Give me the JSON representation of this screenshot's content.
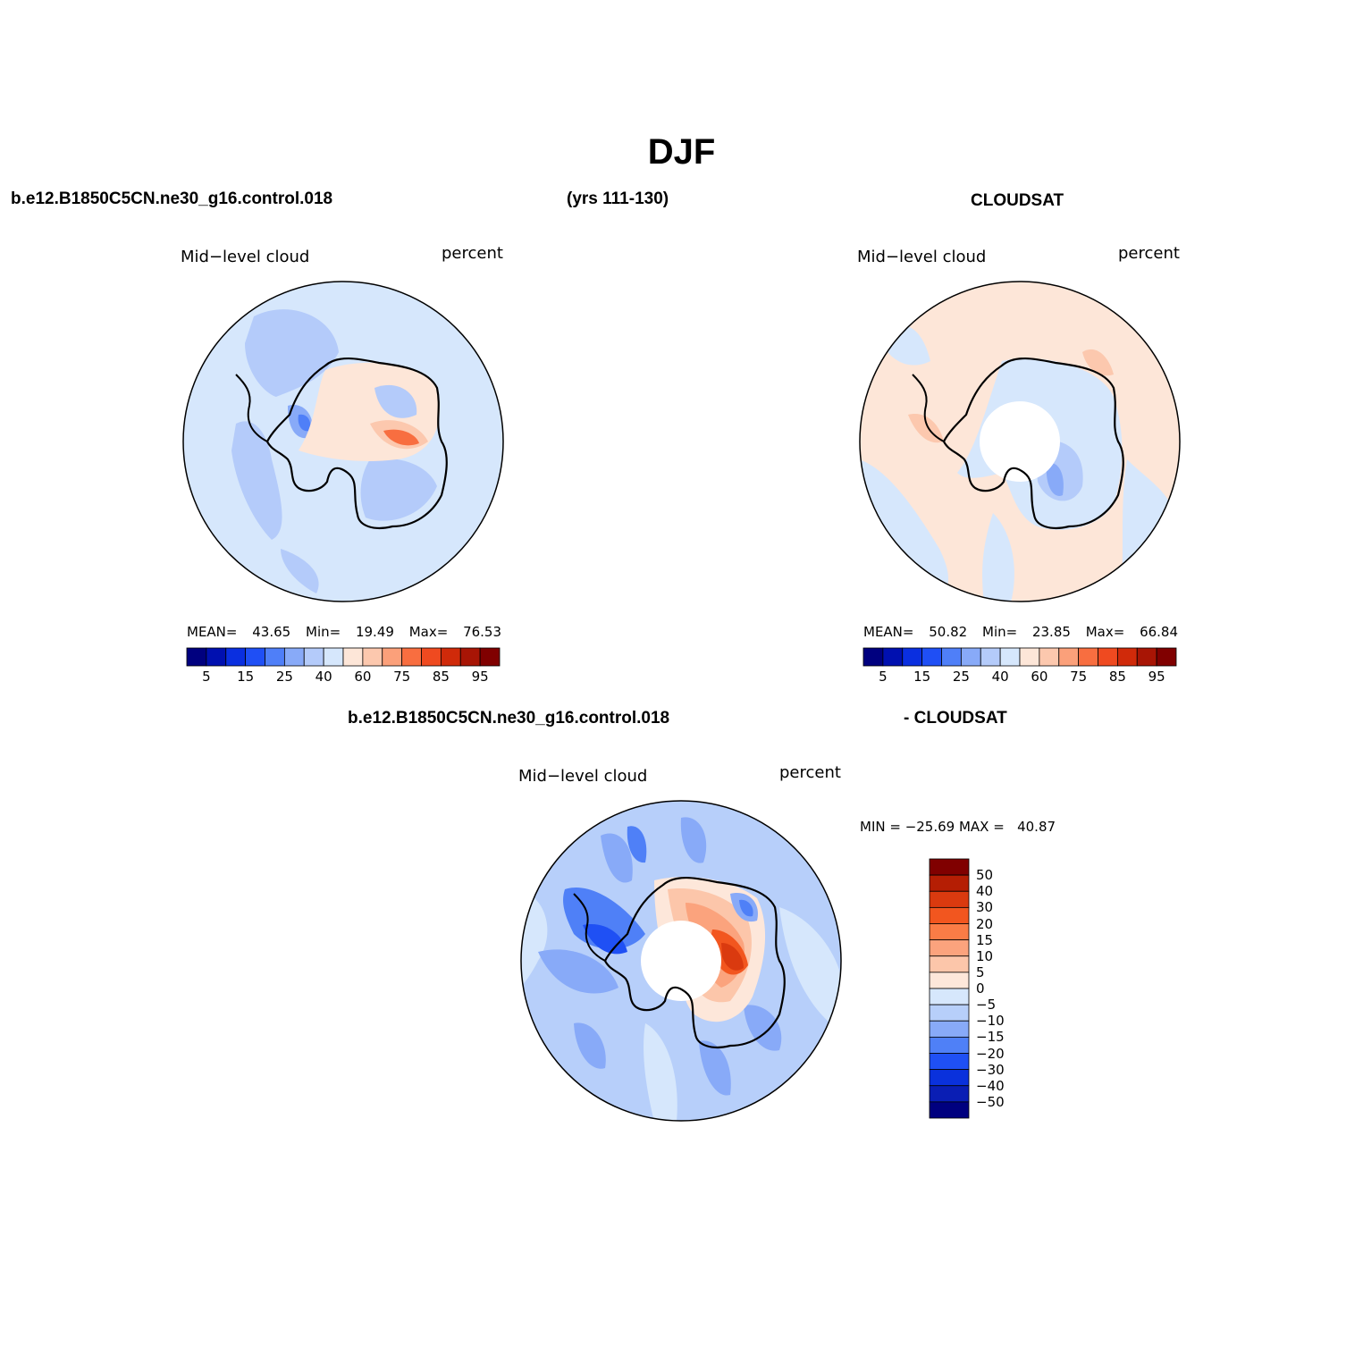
{
  "figure": {
    "title": "DJF",
    "case_name": "b.e12.B1850C5CN.ne30_g16.control.018",
    "years": "(yrs 111-130)",
    "obs_name": "CLOUDSAT",
    "diff_case": "b.e12.B1850C5CN.ne30_g16.control.018",
    "diff_obs": "- CLOUDSAT"
  },
  "panels": {
    "model": {
      "variable": "Mid−level cloud",
      "units": "percent",
      "mean_label": "MEAN=",
      "mean": "43.65",
      "min_label": "Min=",
      "min": "19.49",
      "max_label": "Max=",
      "max": "76.53"
    },
    "obs": {
      "variable": "Mid−level cloud",
      "units": "percent",
      "mean_label": "MEAN=",
      "mean": "50.82",
      "min_label": "Min=",
      "min": "23.85",
      "max_label": "Max=",
      "max": "66.84"
    },
    "diff": {
      "variable": "Mid−level cloud",
      "units": "percent",
      "minmax_text": "MIN = −25.69 MAX =   40.87"
    }
  },
  "colors": {
    "abs_scale": [
      "#00007f",
      "#0010b0",
      "#0a2fe0",
      "#1f4ff5",
      "#4f7ff8",
      "#88aaf8",
      "#b4cbfa",
      "#d6e7fc",
      "#fde6d8",
      "#fcc8ae",
      "#fba07a",
      "#f86e40",
      "#ef4a20",
      "#d02a0a",
      "#a81505",
      "#800000"
    ],
    "diff_scale_top_to_bottom": [
      "#800000",
      "#b51e04",
      "#da3a0f",
      "#f2561f",
      "#fa7c46",
      "#fba37d",
      "#fcc6aa",
      "#fde7da",
      "#d6e7fc",
      "#b7cffa",
      "#88aaf8",
      "#4f80f7",
      "#1f50f4",
      "#0a31dc",
      "#0a1eb4",
      "#00007f"
    ]
  },
  "chart_data": [
    {
      "type": "heatmap",
      "projection": "south-polar-stereographic",
      "title": "Mid−level cloud",
      "units": "percent",
      "colorbar_ticks": [
        "5",
        "15",
        "25",
        "40",
        "60",
        "75",
        "85",
        "95"
      ],
      "stats": {
        "mean": 43.65,
        "min": 19.49,
        "max": 76.53
      }
    },
    {
      "type": "heatmap",
      "projection": "south-polar-stereographic",
      "title": "Mid−level cloud",
      "units": "percent",
      "colorbar_ticks": [
        "5",
        "15",
        "25",
        "40",
        "60",
        "75",
        "85",
        "95"
      ],
      "stats": {
        "mean": 50.82,
        "min": 23.85,
        "max": 66.84
      }
    },
    {
      "type": "heatmap",
      "projection": "south-polar-stereographic",
      "title": "Mid−level cloud",
      "units": "percent",
      "colorbar_ticks": [
        "50",
        "40",
        "30",
        "20",
        "15",
        "10",
        "5",
        "0",
        "−5",
        "−10",
        "−15",
        "−20",
        "−30",
        "−40",
        "−50"
      ],
      "stats": {
        "min": -25.69,
        "max": 40.87
      }
    }
  ]
}
